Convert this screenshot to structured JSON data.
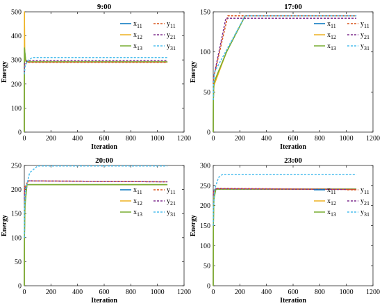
{
  "chart_data": [
    {
      "type": "line",
      "title": "9:00",
      "xlabel": "Iteration",
      "ylabel": "Energy",
      "xlim": [
        0,
        1200
      ],
      "ylim": [
        0,
        500
      ],
      "xticks": [
        0,
        200,
        400,
        600,
        800,
        1000,
        1200
      ],
      "yticks": [
        0,
        100,
        200,
        300,
        400,
        500
      ],
      "legend": "top-right",
      "series": [
        {
          "name": "x11",
          "style": "solid",
          "color": "#0072BD",
          "x": [
            0,
            1,
            10,
            30,
            1075
          ],
          "y": [
            0,
            350,
            295,
            292,
            292
          ]
        },
        {
          "name": "x12",
          "style": "solid",
          "color": "#EDB120",
          "x": [
            0,
            1,
            4,
            15,
            1075
          ],
          "y": [
            0,
            500,
            300,
            292,
            292
          ]
        },
        {
          "name": "x13",
          "style": "solid",
          "color": "#77AC30",
          "x": [
            0,
            1,
            10,
            25,
            1075
          ],
          "y": [
            0,
            350,
            300,
            292,
            292
          ]
        },
        {
          "name": "y11",
          "style": "dashed",
          "color": "#D95319",
          "x": [
            0,
            3,
            20,
            1075
          ],
          "y": [
            240,
            275,
            290,
            290
          ]
        },
        {
          "name": "y21",
          "style": "dashed",
          "color": "#7E2F8E",
          "x": [
            0,
            3,
            25,
            1075
          ],
          "y": [
            250,
            285,
            298,
            298
          ]
        },
        {
          "name": "y31",
          "style": "dashed",
          "color": "#4DBEEE",
          "x": [
            0,
            5,
            20,
            60,
            1075
          ],
          "y": [
            240,
            270,
            295,
            310,
            310
          ]
        }
      ]
    },
    {
      "type": "line",
      "title": "17:00",
      "xlabel": "Iteration",
      "ylabel": "Energy",
      "xlim": [
        0,
        1200
      ],
      "ylim": [
        0,
        150
      ],
      "xticks": [
        0,
        200,
        400,
        600,
        800,
        1000,
        1200
      ],
      "yticks": [
        0,
        50,
        100,
        150
      ],
      "legend": "top-right",
      "series": [
        {
          "name": "x11",
          "style": "solid",
          "color": "#0072BD",
          "x": [
            0,
            1,
            5,
            100,
            240,
            1075
          ],
          "y": [
            0,
            40,
            60,
            100,
            145,
            145
          ]
        },
        {
          "name": "x12",
          "style": "solid",
          "color": "#EDB120",
          "x": [
            0,
            1,
            5,
            100,
            240,
            1075
          ],
          "y": [
            0,
            40,
            58,
            100,
            145,
            145
          ]
        },
        {
          "name": "x13",
          "style": "solid",
          "color": "#77AC30",
          "x": [
            0,
            1,
            5,
            100,
            240,
            1075
          ],
          "y": [
            0,
            40,
            62,
            100,
            145,
            145
          ]
        },
        {
          "name": "y11",
          "style": "dashed",
          "color": "#D95319",
          "x": [
            0,
            3,
            110,
            1075
          ],
          "y": [
            60,
            68,
            145,
            145
          ]
        },
        {
          "name": "y21",
          "style": "dashed",
          "color": "#7E2F8E",
          "x": [
            0,
            3,
            95,
            1075
          ],
          "y": [
            62,
            68,
            142,
            142
          ]
        },
        {
          "name": "y31",
          "style": "dashed",
          "color": "#4DBEEE",
          "x": [
            0,
            1,
            10,
            240,
            1075
          ],
          "y": [
            40,
            60,
            75,
            145,
            145
          ]
        }
      ]
    },
    {
      "type": "line",
      "title": "20:00",
      "xlabel": "Iteration",
      "ylabel": "Energy",
      "xlim": [
        0,
        1200
      ],
      "ylim": [
        0,
        250
      ],
      "xticks": [
        0,
        200,
        400,
        600,
        800,
        1000,
        1200
      ],
      "yticks": [
        0,
        50,
        100,
        150,
        200,
        250
      ],
      "legend": "top-right",
      "series": [
        {
          "name": "x11",
          "style": "solid",
          "color": "#0072BD",
          "x": [
            0,
            1,
            5,
            20,
            1075
          ],
          "y": [
            0,
            100,
            170,
            210,
            210
          ]
        },
        {
          "name": "x12",
          "style": "solid",
          "color": "#EDB120",
          "x": [
            0,
            1,
            5,
            20,
            1075
          ],
          "y": [
            0,
            100,
            175,
            210,
            210
          ]
        },
        {
          "name": "x13",
          "style": "solid",
          "color": "#77AC30",
          "x": [
            0,
            1,
            5,
            20,
            1075
          ],
          "y": [
            0,
            100,
            165,
            210,
            210
          ]
        },
        {
          "name": "y11",
          "style": "dashed",
          "color": "#D95319",
          "x": [
            0,
            3,
            30,
            1075
          ],
          "y": [
            190,
            205,
            218,
            216
          ]
        },
        {
          "name": "y21",
          "style": "dashed",
          "color": "#7E2F8E",
          "x": [
            0,
            3,
            30,
            1075
          ],
          "y": [
            180,
            200,
            218,
            216
          ]
        },
        {
          "name": "y31",
          "style": "dashed",
          "color": "#4DBEEE",
          "x": [
            0,
            1,
            10,
            40,
            100,
            1075
          ],
          "y": [
            100,
            160,
            200,
            235,
            249,
            249
          ]
        }
      ]
    },
    {
      "type": "line",
      "title": "23:00",
      "xlabel": "Iteration",
      "ylabel": "Energy",
      "xlim": [
        0,
        1200
      ],
      "ylim": [
        0,
        300
      ],
      "xticks": [
        0,
        200,
        400,
        600,
        800,
        1000,
        1200
      ],
      "yticks": [
        0,
        50,
        100,
        150,
        200,
        250,
        300
      ],
      "legend": "right",
      "series": [
        {
          "name": "x11",
          "style": "solid",
          "color": "#0072BD",
          "x": [
            0,
            1,
            5,
            20,
            1075
          ],
          "y": [
            0,
            150,
            220,
            241,
            241
          ]
        },
        {
          "name": "x12",
          "style": "solid",
          "color": "#EDB120",
          "x": [
            0,
            1,
            5,
            20,
            1075
          ],
          "y": [
            0,
            150,
            225,
            241,
            241
          ]
        },
        {
          "name": "x13",
          "style": "solid",
          "color": "#77AC30",
          "x": [
            0,
            1,
            5,
            20,
            1075
          ],
          "y": [
            0,
            150,
            215,
            241,
            241
          ]
        },
        {
          "name": "y11",
          "style": "dashed",
          "color": "#D95319",
          "x": [
            0,
            3,
            20,
            1075
          ],
          "y": [
            230,
            238,
            243,
            240
          ]
        },
        {
          "name": "y21",
          "style": "dashed",
          "color": "#7E2F8E",
          "x": [
            0,
            3,
            20,
            1075
          ],
          "y": [
            225,
            235,
            242,
            240
          ]
        },
        {
          "name": "y31",
          "style": "dashed",
          "color": "#4DBEEE",
          "x": [
            0,
            1,
            10,
            40,
            70,
            1075
          ],
          "y": [
            150,
            190,
            240,
            270,
            278,
            278
          ]
        }
      ]
    }
  ]
}
